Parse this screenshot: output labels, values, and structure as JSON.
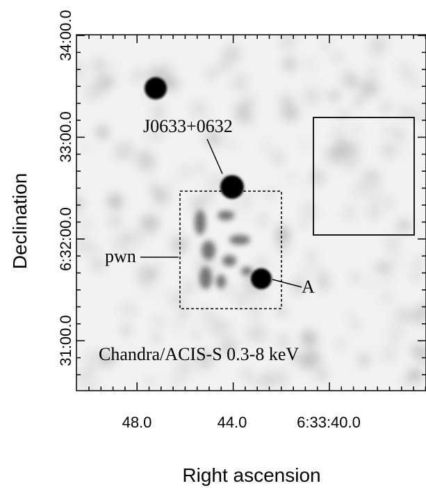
{
  "figure": {
    "xlabel": "Right ascension",
    "ylabel": "Declination",
    "x_ticks": [
      "48.0",
      "44.0",
      "6:33:40.0"
    ],
    "y_ticks": [
      "34:00.0",
      "33:00.0",
      "6:32:00.0",
      "31:00.0"
    ],
    "annotations": {
      "source_label": "J0633+0632",
      "pwn_label": "pwn",
      "point_a_label": "A",
      "instrument_label": "Chandra/ACIS-S 0.3-8 keV"
    },
    "colors": {
      "background": "#f2f2f2",
      "source": "#000000",
      "nebula": "#505050"
    }
  }
}
